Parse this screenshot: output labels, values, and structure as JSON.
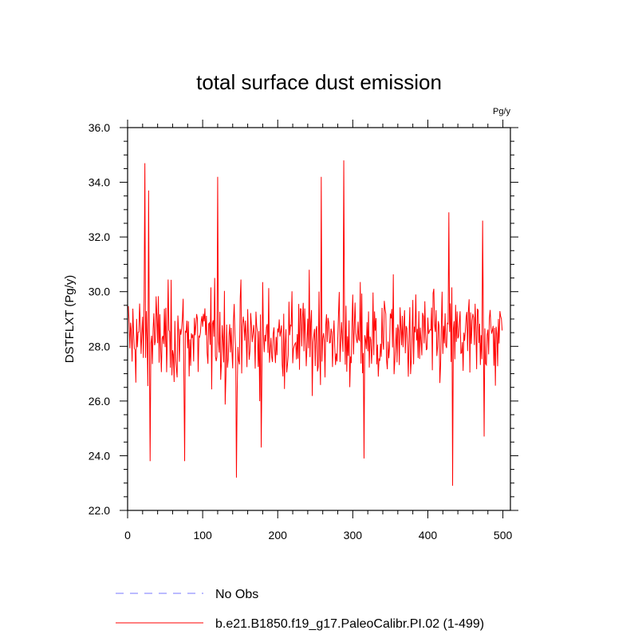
{
  "chart_data": {
    "type": "line",
    "title": "total surface dust emission",
    "units_label": "Pg/y",
    "ylabel": "DSTFLXT  (Pg/y)",
    "xlabel": "",
    "xlim": [
      0,
      510
    ],
    "ylim": [
      22.0,
      36.0
    ],
    "x_ticks": [
      0,
      100,
      200,
      300,
      400,
      500
    ],
    "x_tick_labels": [
      "0",
      "100",
      "200",
      "300",
      "400",
      "500"
    ],
    "y_ticks": [
      22.0,
      24.0,
      26.0,
      28.0,
      30.0,
      32.0,
      34.0,
      36.0
    ],
    "y_tick_labels": [
      "22.0",
      "24.0",
      "26.0",
      "28.0",
      "30.0",
      "32.0",
      "34.0",
      "36.0"
    ],
    "grid": false,
    "legend_position": "bottom-left",
    "series": [
      {
        "name": "No Obs",
        "color": "#7777ff",
        "dash": "dashed",
        "values": []
      },
      {
        "name": "b.e21.B1850.f19_g17.PaleoCalibr.PI.02 (1-499)",
        "color": "#ff0000",
        "dash": "solid",
        "x_start": 1,
        "x_end": 499,
        "generated": true,
        "mean": 28.3,
        "spread": 1.6,
        "extremes": [
          [
            23,
            34.7
          ],
          [
            28,
            33.7
          ],
          [
            30,
            23.8
          ],
          [
            76,
            23.8
          ],
          [
            120,
            34.2
          ],
          [
            145,
            23.2
          ],
          [
            178,
            24.3
          ],
          [
            258,
            34.2
          ],
          [
            288,
            34.8
          ],
          [
            315,
            23.9
          ],
          [
            433,
            22.9
          ],
          [
            428,
            32.9
          ],
          [
            475,
            24.7
          ],
          [
            473,
            32.6
          ]
        ]
      }
    ]
  }
}
